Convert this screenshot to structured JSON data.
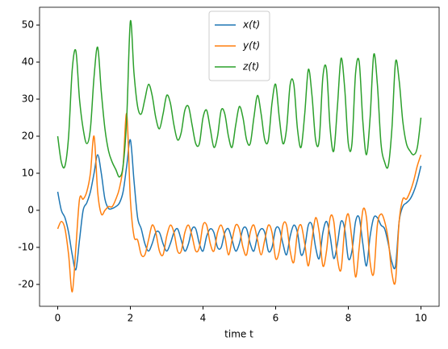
{
  "chart_data": {
    "type": "line",
    "xlabel": "time t",
    "x": [
      0,
      0.1,
      0.2,
      0.3,
      0.4,
      0.5,
      0.6,
      0.7,
      0.8,
      0.9,
      1,
      1.1,
      1.2,
      1.3,
      1.4,
      1.5,
      1.6,
      1.7,
      1.8,
      1.9,
      2,
      2.1,
      2.2,
      2.3,
      2.4,
      2.5,
      2.6,
      2.7,
      2.8,
      2.9,
      3,
      3.1,
      3.2,
      3.3,
      3.4,
      3.5,
      3.6,
      3.7,
      3.8,
      3.9,
      4,
      4.1,
      4.2,
      4.3,
      4.4,
      4.5,
      4.6,
      4.7,
      4.8,
      4.9,
      5,
      5.1,
      5.2,
      5.3,
      5.4,
      5.5,
      5.6,
      5.7,
      5.8,
      5.9,
      6,
      6.1,
      6.2,
      6.3,
      6.4,
      6.5,
      6.6,
      6.7,
      6.8,
      6.9,
      7,
      7.1,
      7.2,
      7.3,
      7.4,
      7.5,
      7.6,
      7.7,
      7.8,
      7.9,
      8,
      8.1,
      8.2,
      8.3,
      8.4,
      8.5,
      8.6,
      8.7,
      8.8,
      8.9,
      9,
      9.1,
      9.2,
      9.3,
      9.4,
      9.5,
      9.6,
      9.7,
      9.8,
      9.9,
      10
    ],
    "series": [
      {
        "name": "x(t)",
        "color": "#1f77b4",
        "values": [
          5,
          0,
          -2,
          -6,
          -12,
          -16,
          -8,
          0,
          2,
          5,
          10,
          15,
          10,
          3,
          0.5,
          0.5,
          1,
          2,
          5,
          12,
          19,
          8,
          -2,
          -5,
          -9,
          -11,
          -9,
          -6,
          -6,
          -9,
          -11,
          -9,
          -6,
          -5,
          -8,
          -11,
          -9,
          -5,
          -5,
          -9,
          -11,
          -7,
          -5,
          -6,
          -10,
          -10,
          -6,
          -5,
          -8,
          -11,
          -9,
          -5,
          -5,
          -9,
          -11,
          -7,
          -5,
          -6,
          -11,
          -10,
          -5,
          -5,
          -9,
          -12,
          -7,
          -4,
          -6,
          -12,
          -10,
          -4,
          -4,
          -10,
          -13,
          -6,
          -3,
          -7,
          -13,
          -9,
          -3,
          -5,
          -13,
          -11,
          -3,
          -2,
          -9,
          -15,
          -7,
          -2,
          -2,
          -4,
          -5,
          -9,
          -14,
          -15,
          -3,
          1,
          2,
          3,
          5,
          8,
          12
        ]
      },
      {
        "name": "y(t)",
        "color": "#ff7f0e",
        "values": [
          -5,
          -3,
          -5,
          -12,
          -22,
          -10,
          3,
          3,
          5,
          10,
          20,
          5,
          -1,
          0,
          1,
          1,
          3,
          6,
          12,
          26,
          3,
          -7,
          -8,
          -12,
          -12,
          -8,
          -4,
          -6,
          -11,
          -12,
          -7,
          -4,
          -6,
          -11,
          -11,
          -6,
          -4,
          -7,
          -11,
          -10,
          -4,
          -4,
          -9,
          -11,
          -6,
          -4,
          -7,
          -12,
          -8,
          -4,
          -5,
          -10,
          -12,
          -6,
          -4,
          -8,
          -12,
          -8,
          -4,
          -6,
          -13,
          -11,
          -4,
          -4,
          -11,
          -14,
          -6,
          -4,
          -9,
          -15,
          -8,
          -2,
          -6,
          -15,
          -11,
          -2,
          -3,
          -13,
          -16,
          -5,
          -1,
          -8,
          -18,
          -10,
          0,
          -2,
          -14,
          -17,
          -4,
          -1,
          -3,
          -8,
          -17,
          -19,
          -3,
          3,
          3,
          5,
          8,
          12,
          15
        ]
      },
      {
        "name": "z(t)",
        "color": "#2ca02c",
        "values": [
          20,
          13,
          12,
          20,
          38,
          43,
          30,
          22,
          18,
          22,
          36,
          44,
          32,
          22,
          16,
          13,
          11,
          9,
          12,
          25,
          51,
          37,
          28,
          26,
          30,
          34,
          31,
          25,
          22,
          26,
          31,
          29,
          23,
          19,
          21,
          27,
          28,
          23,
          18,
          18,
          25,
          27,
          22,
          17,
          20,
          27,
          26,
          20,
          17,
          23,
          28,
          25,
          19,
          18,
          25,
          31,
          26,
          19,
          19,
          29,
          34,
          25,
          18,
          22,
          34,
          34,
          22,
          17,
          26,
          38,
          31,
          19,
          19,
          36,
          38,
          22,
          16,
          28,
          41,
          33,
          18,
          18,
          37,
          40,
          24,
          15,
          25,
          42,
          34,
          18,
          13,
          12,
          22,
          40,
          35,
          24,
          18,
          16,
          15,
          17,
          25
        ]
      }
    ],
    "xlim": [
      -0.5,
      10.5
    ],
    "xticks": [
      0,
      2,
      4,
      6,
      8,
      10
    ],
    "ylim": [
      -25.9,
      54.8
    ],
    "yticks": [
      -20,
      -10,
      0,
      10,
      20,
      30,
      40,
      50
    ],
    "legend": "upper center"
  }
}
